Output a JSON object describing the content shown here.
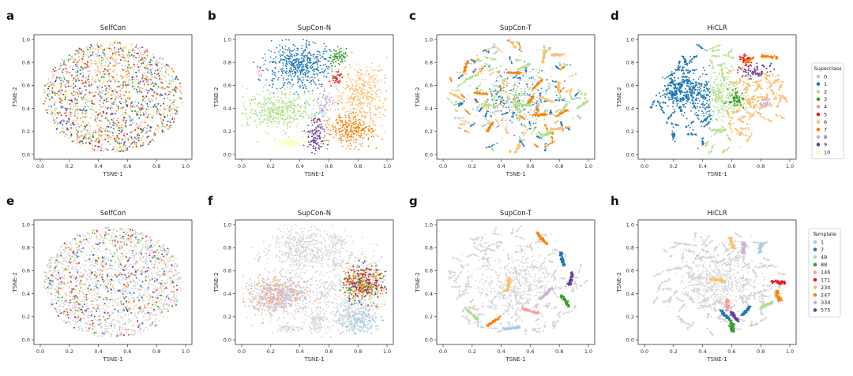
{
  "figure": {
    "palette": [
      "#a6cee3",
      "#1f78b4",
      "#b2df8a",
      "#33a02c",
      "#fb9a99",
      "#e31a1c",
      "#fdbf6f",
      "#ff7f00",
      "#cab2d6",
      "#6a3d9a",
      "#ffff99"
    ],
    "background_point_color": "#d3d3d3"
  },
  "chart_data": [
    {
      "panel": "a",
      "type": "scatter",
      "title": "SelfCon",
      "xlabel": "TSNE-1",
      "ylabel": "TSNE-2",
      "xlim": [
        0,
        1
      ],
      "ylim": [
        0,
        1
      ],
      "xticks": [
        "0.0",
        "0.2",
        "0.4",
        "0.6",
        "0.8",
        "1.0"
      ],
      "yticks": [
        "0.0",
        "0.2",
        "0.4",
        "0.6",
        "0.8",
        "1.0"
      ],
      "legend_group": "superclass",
      "style": "mixed-superclass"
    },
    {
      "panel": "b",
      "type": "scatter",
      "title": "SupCon-N",
      "xlabel": "TSNE-1",
      "ylabel": "TSNE-2",
      "xlim": [
        0,
        1
      ],
      "ylim": [
        0,
        1
      ],
      "xticks": [
        "0.0",
        "0.2",
        "0.4",
        "0.6",
        "0.8",
        "1.0"
      ],
      "yticks": [
        "0.0",
        "0.2",
        "0.4",
        "0.6",
        "0.8",
        "1.0"
      ],
      "legend_group": "superclass",
      "style": "blob-superclass"
    },
    {
      "panel": "c",
      "type": "scatter",
      "title": "SupCon-T",
      "xlabel": "TSNE-1",
      "ylabel": "TSNE-2",
      "xlim": [
        0,
        1
      ],
      "ylim": [
        0,
        1
      ],
      "xticks": [
        "0.0",
        "0.2",
        "0.4",
        "0.6",
        "0.8",
        "1.0"
      ],
      "yticks": [
        "0.0",
        "0.2",
        "0.4",
        "0.6",
        "0.8",
        "1.0"
      ],
      "legend_group": "superclass",
      "style": "streak-superclass"
    },
    {
      "panel": "d",
      "type": "scatter",
      "title": "HiCLR",
      "xlabel": "TSNE-1",
      "ylabel": "TSNE-2",
      "xlim": [
        0,
        1
      ],
      "ylim": [
        0,
        1
      ],
      "xticks": [
        "0.0",
        "0.2",
        "0.4",
        "0.6",
        "0.8",
        "1.0"
      ],
      "yticks": [
        "0.0",
        "0.2",
        "0.4",
        "0.6",
        "0.8",
        "1.0"
      ],
      "legend_group": "superclass",
      "style": "radial-superclass"
    },
    {
      "panel": "e",
      "type": "scatter",
      "title": "SelfCon",
      "xlabel": "TSNE-1",
      "ylabel": "TSNE-2",
      "xlim": [
        0,
        1
      ],
      "ylim": [
        0,
        1
      ],
      "xticks": [
        "0.0",
        "0.2",
        "0.4",
        "0.6",
        "0.8",
        "1.0"
      ],
      "yticks": [
        "0.0",
        "0.2",
        "0.4",
        "0.6",
        "0.8",
        "1.0"
      ],
      "legend_group": "template",
      "style": "mixed-template"
    },
    {
      "panel": "f",
      "type": "scatter",
      "title": "SupCon-N",
      "xlabel": "TSNE-1",
      "ylabel": "TSNE-2",
      "xlim": [
        0,
        1
      ],
      "ylim": [
        0,
        1
      ],
      "xticks": [
        "0.0",
        "0.2",
        "0.4",
        "0.6",
        "0.8",
        "1.0"
      ],
      "yticks": [
        "0.0",
        "0.2",
        "0.4",
        "0.6",
        "0.8",
        "1.0"
      ],
      "legend_group": "template",
      "style": "blob-template"
    },
    {
      "panel": "g",
      "type": "scatter",
      "title": "SupCon-T",
      "xlabel": "TSNE-1",
      "ylabel": "TSNE-2",
      "xlim": [
        0,
        1
      ],
      "ylim": [
        0,
        1
      ],
      "xticks": [
        "0.0",
        "0.2",
        "0.4",
        "0.6",
        "0.8",
        "1.0"
      ],
      "yticks": [
        "0.0",
        "0.2",
        "0.4",
        "0.6",
        "0.8",
        "1.0"
      ],
      "legend_group": "template",
      "style": "streak-template"
    },
    {
      "panel": "h",
      "type": "scatter",
      "title": "HiCLR",
      "xlabel": "TSNE-1",
      "ylabel": "TSNE-2",
      "xlim": [
        0,
        1
      ],
      "ylim": [
        0,
        1
      ],
      "xticks": [
        "0.0",
        "0.2",
        "0.4",
        "0.6",
        "0.8",
        "1.0"
      ],
      "yticks": [
        "0.0",
        "0.2",
        "0.4",
        "0.6",
        "0.8",
        "1.0"
      ],
      "legend_group": "template",
      "style": "radial-template"
    }
  ],
  "legends": {
    "superclass": {
      "title": "Superclass",
      "entries": [
        {
          "label": "0",
          "color": "#a6cee3"
        },
        {
          "label": "1",
          "color": "#1f78b4"
        },
        {
          "label": "2",
          "color": "#b2df8a"
        },
        {
          "label": "3",
          "color": "#33a02c"
        },
        {
          "label": "4",
          "color": "#fb9a99"
        },
        {
          "label": "5",
          "color": "#e31a1c"
        },
        {
          "label": "6",
          "color": "#fdbf6f"
        },
        {
          "label": "7",
          "color": "#ff7f00"
        },
        {
          "label": "8",
          "color": "#cab2d6"
        },
        {
          "label": "9",
          "color": "#6a3d9a"
        },
        {
          "label": "10",
          "color": "#ffff99"
        }
      ]
    },
    "template": {
      "title": "Template",
      "entries": [
        {
          "label": "1",
          "color": "#a6cee3"
        },
        {
          "label": "7",
          "color": "#1f78b4"
        },
        {
          "label": "48",
          "color": "#b2df8a"
        },
        {
          "label": "88",
          "color": "#33a02c"
        },
        {
          "label": "146",
          "color": "#fb9a99"
        },
        {
          "label": "171",
          "color": "#e31a1c"
        },
        {
          "label": "230",
          "color": "#fdbf6f"
        },
        {
          "label": "247",
          "color": "#ff7f00"
        },
        {
          "label": "334",
          "color": "#cab2d6"
        },
        {
          "label": "575",
          "color": "#6a3d9a"
        }
      ]
    }
  }
}
